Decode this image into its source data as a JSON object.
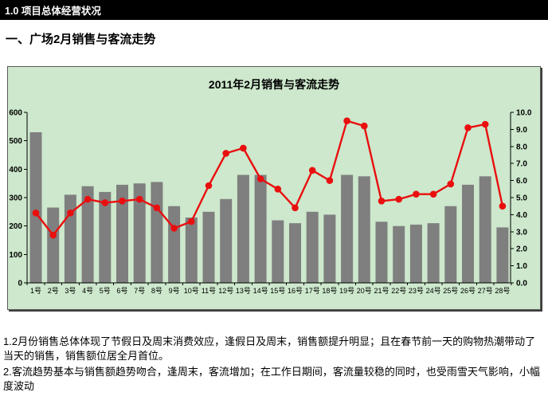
{
  "header": {
    "title": "1.0 项目总体经营状况"
  },
  "section_heading": "一、广场2月销售与客流走势",
  "chart_data": {
    "type": "bar",
    "title": "2011年2月销售与客流走势",
    "categories": [
      "1号",
      "2号",
      "3号",
      "4号",
      "5号",
      "6号",
      "7号",
      "8号",
      "9号",
      "10号",
      "11号",
      "12号",
      "13号",
      "14号",
      "15号",
      "16号",
      "17号",
      "18号",
      "19号",
      "20号",
      "21号",
      "22号",
      "23号",
      "24号",
      "25号",
      "26号",
      "27号",
      "28号"
    ],
    "series": [
      {
        "id": "sales-bars",
        "type": "bar",
        "axis": "left",
        "values": [
          530,
          265,
          310,
          340,
          320,
          345,
          350,
          355,
          270,
          230,
          250,
          295,
          380,
          380,
          220,
          210,
          250,
          240,
          380,
          375,
          215,
          200,
          205,
          210,
          270,
          345,
          375,
          195
        ]
      },
      {
        "id": "traffic-line",
        "type": "line",
        "axis": "right",
        "values": [
          4.1,
          2.8,
          4.1,
          4.9,
          4.7,
          4.8,
          4.9,
          4.4,
          3.2,
          3.6,
          5.7,
          7.6,
          7.9,
          6.1,
          5.5,
          4.4,
          6.6,
          6.0,
          9.5,
          9.2,
          4.8,
          4.9,
          5.2,
          5.2,
          5.8,
          9.1,
          9.3,
          4.5
        ]
      }
    ],
    "left_axis": {
      "min": 0,
      "max": 600,
      "step": 100,
      "ticks": [
        "0",
        "100",
        "200",
        "300",
        "400",
        "500",
        "600"
      ]
    },
    "right_axis": {
      "min": 0,
      "max": 10,
      "step": 1,
      "ticks": [
        "0.0",
        "1.0",
        "2.0",
        "3.0",
        "4.0",
        "5.0",
        "6.0",
        "7.0",
        "8.0",
        "9.0",
        "10.0"
      ]
    },
    "grid": false,
    "legend": false,
    "colors": {
      "plot_bg": "#cde8cc",
      "bar": "#7f7f7f",
      "line": "#e90f0f",
      "axis": "#000000"
    }
  },
  "notes": [
    "1.2月份销售总体体现了节假日及周末消费效应，逢假日及周末，销售额提升明显；且在春节前一天的购物热潮带动了当天的销售，销售额位居全月首位。",
    "2.客流趋势基本与销售额趋势吻合，逢周末，客流增加；在工作日期间，客流量较稳的同时，也受雨雪天气影响，小幅度波动"
  ]
}
